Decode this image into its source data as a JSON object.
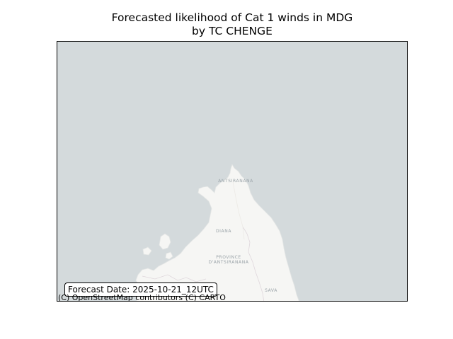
{
  "title": {
    "line1": "Forecasted likelihood of Cat 1 winds in MDG",
    "line2": "by TC CHENGE"
  },
  "map": {
    "basemap": "light",
    "sea_color": "#d4dadc",
    "land_color": "#f6f6f4",
    "labels": {
      "antsiranana": "ANTSIRANANA",
      "diana": "DIANA",
      "province_line1": "PROVINCE",
      "province_line2": "D'ANTSIRANANA",
      "sava": "SAVA"
    }
  },
  "forecast_date": "Forecast Date: 2025-10-21_12UTC",
  "attribution": "(C) OpenStreetMap contributors (C) CARTO"
}
